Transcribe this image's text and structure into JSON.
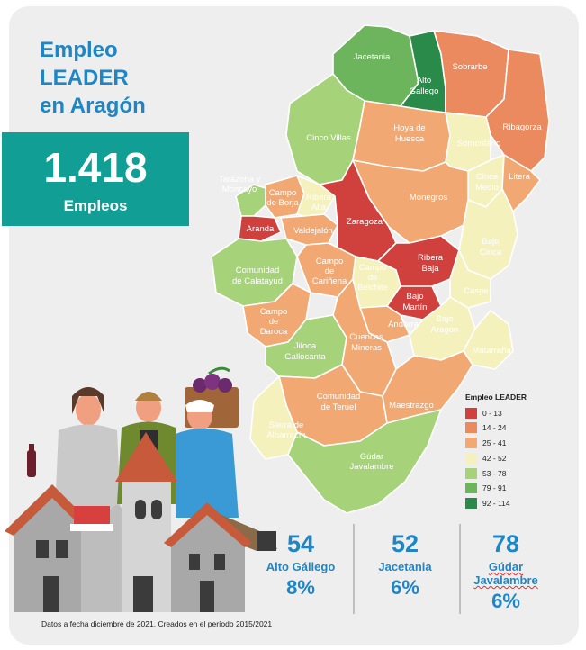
{
  "title": {
    "line1": "Empleo",
    "line2": "LEADER",
    "line3": "en Aragón"
  },
  "total": {
    "value": "1.418",
    "unit": "Empleos"
  },
  "legend": {
    "title": "Empleo LEADER",
    "items": [
      {
        "label": "0 - 13",
        "color": "#d0403c"
      },
      {
        "label": "14 - 24",
        "color": "#ea8a5e"
      },
      {
        "label": "25 - 41",
        "color": "#f2a872"
      },
      {
        "label": "42 - 52",
        "color": "#f4f1bc"
      },
      {
        "label": "53 - 78",
        "color": "#a6d27a"
      },
      {
        "label": "79 - 91",
        "color": "#6cb55c"
      },
      {
        "label": "92 - 114",
        "color": "#2a8a49"
      }
    ]
  },
  "regions": {
    "jacetania": "Jacetania",
    "alto_gallego_1": "Alto",
    "alto_gallego_2": "Gallego",
    "sobrarbe": "Sobrarbe",
    "ribagorza": "Ribagorza",
    "cinco_villas": "Cinco Villas",
    "hoya_1": "Hoya de",
    "hoya_2": "Huesca",
    "somontano": "Somontano",
    "cinca_1": "Cinca",
    "cinca_2": "Medio",
    "litera": "Litera",
    "tarazona_1": "Tarazona y",
    "tarazona_2": "Moncayo",
    "borja_1": "Campo",
    "borja_2": "de Borja",
    "ribera_alta_1": "Ribera",
    "ribera_alta_2": "Alta",
    "monegros": "Monegros",
    "aranda": "Aranda",
    "valdejalon": "Valdejalón",
    "zaragoza": "Zaragoza",
    "bajo_cinca_1": "Bajo",
    "bajo_cinca_2": "Cinca",
    "calatayud_1": "Comunidad",
    "calatayud_2": "de Calatayud",
    "carinena_1": "Campo",
    "carinena_2": "de",
    "carinena_3": "Cariñena",
    "belchite_1": "Campo",
    "belchite_2": "de",
    "belchite_3": "Belchite",
    "ribera_baja_1": "Ribera",
    "ribera_baja_2": "Baja",
    "caspe": "Caspe",
    "bajo_martin_1": "Bajo",
    "bajo_martin_2": "Martín",
    "daroca_1": "Campo",
    "daroca_2": "de",
    "daroca_3": "Daroca",
    "andorra": "Andorra",
    "bajo_aragon_1": "Bajo",
    "bajo_aragon_2": "Aragón",
    "jiloca_1": "Jiloca",
    "jiloca_2": "Gallocanta",
    "cuencas_1": "Cuencas",
    "cuencas_2": "Mineras",
    "matarrana": "Matarraña",
    "teruel_1": "Comunidad",
    "teruel_2": "de Teruel",
    "maestrazgo": "Maestrazgo",
    "albarracin_1": "Sierra de",
    "albarracin_2": "Albarracín",
    "gudar_1": "Gúdar",
    "gudar_2": "Javalambre"
  },
  "highlights": [
    {
      "value": "54",
      "name": "Alto Gállego",
      "percent": "8%"
    },
    {
      "value": "52",
      "name": "Jacetania",
      "percent": "6%"
    },
    {
      "value": "78",
      "name": "Gúdar Javalambre",
      "percent": "6%"
    }
  ],
  "footnote": "Datos a fecha diciembre de 2021. Creados en el período 2015/2021"
}
